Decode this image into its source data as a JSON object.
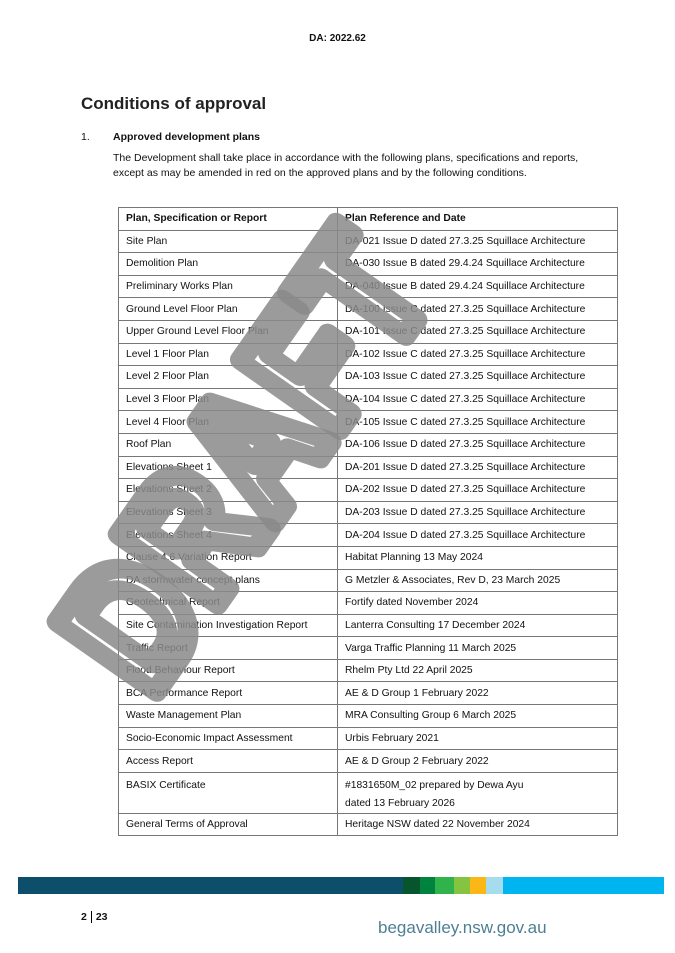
{
  "header": {
    "reference": "DA: 2022.62"
  },
  "section_title": "Conditions of approval",
  "condition": {
    "number": "1.",
    "title": "Approved development plans",
    "text": "The Development shall take place in accordance with the following plans, specifications and reports, except as may be amended in red on the approved plans and by the following conditions."
  },
  "table": {
    "headers": [
      "Plan, Specification or Report",
      "Plan Reference and Date"
    ],
    "rows": [
      [
        "Site Plan",
        "DA-021 Issue D dated 27.3.25 Squillace Architecture"
      ],
      [
        "Demolition Plan",
        "DA-030 Issue B dated 29.4.24 Squillace Architecture"
      ],
      [
        "Preliminary Works Plan",
        "DA-040 Issue B dated 29.4.24 Squillace Architecture"
      ],
      [
        "Ground Level Floor Plan",
        "DA-100 Issue C dated 27.3.25 Squillace Architecture"
      ],
      [
        "Upper Ground Level Floor Plan",
        "DA-101 Issue C dated 27.3.25 Squillace Architecture"
      ],
      [
        "Level 1 Floor Plan",
        "DA-102 Issue C dated 27.3.25 Squillace Architecture"
      ],
      [
        "Level 2 Floor Plan",
        "DA-103 Issue C dated 27.3.25 Squillace Architecture"
      ],
      [
        "Level 3 Floor Plan",
        "DA-104 Issue C dated 27.3.25 Squillace Architecture"
      ],
      [
        "Level 4 Floor Plan",
        "DA-105 Issue C dated 27.3.25 Squillace Architecture"
      ],
      [
        "Roof Plan",
        "DA-106 Issue D dated 27.3.25 Squillace Architecture"
      ],
      [
        "Elevations Sheet 1",
        "DA-201 Issue D dated 27.3.25 Squillace Architecture"
      ],
      [
        "Elevations Sheet 2",
        "DA-202 Issue D dated 27.3.25 Squillace Architecture"
      ],
      [
        "Elevations Sheet 3",
        "DA-203 Issue D dated 27.3.25 Squillace Architecture"
      ],
      [
        "Elevations Sheet 4",
        "DA-204 Issue D dated 27.3.25 Squillace Architecture"
      ],
      [
        "Clause 4.6 Variation Report",
        "Habitat Planning 13 May 2024"
      ],
      [
        "DA stormwater concept plans",
        "G Metzler & Associates, Rev D, 23 March 2025"
      ],
      [
        "Geotechnical Report",
        "Fortify dated November 2024"
      ],
      [
        "Site Contamination Investigation Report",
        "Lanterra Consulting 17 December 2024"
      ],
      [
        "Traffic Report",
        "Varga Traffic Planning 11 March 2025"
      ],
      [
        "Flood Behaviour Report",
        "Rhelm Pty Ltd 22 April 2025"
      ],
      [
        "BCA Performance Report",
        "AE & D Group 1 February 2022"
      ],
      [
        "Waste Management Plan",
        "MRA Consulting Group 6 March 2025"
      ],
      [
        "Socio-Economic Impact Assessment",
        "Urbis February 2021"
      ],
      [
        "Access Report",
        "AE & D Group 2 February 2022"
      ]
    ],
    "basix": {
      "label": "BASIX Certificate",
      "line1": "#1831650M_02 prepared by Dewa Ayu",
      "line2": "dated 13 February 2026"
    },
    "last": [
      "General Terms of Approval",
      "Heritage NSW dated 22 November 2024"
    ]
  },
  "watermark": "DRAFT",
  "footer": {
    "page": "2",
    "total": "23",
    "website": "begavalley.nsw.gov.au",
    "bar_colors": [
      "#0d4f6a",
      "#07552d",
      "#00843d",
      "#2fb34a",
      "#86c340",
      "#fbb715",
      "#a5dcee",
      "#00b5ef"
    ]
  }
}
